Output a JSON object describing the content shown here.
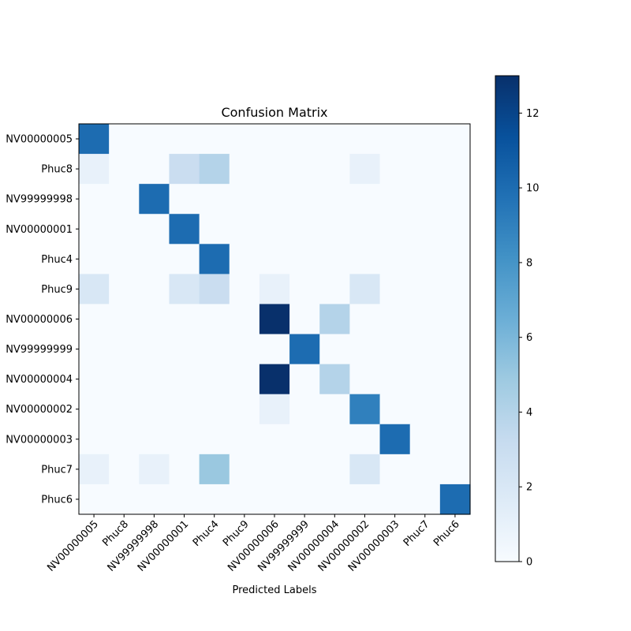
{
  "chart_data": {
    "type": "heatmap",
    "title": "Confusion Matrix",
    "xlabel": "Predicted Labels",
    "ylabel": "",
    "colormap": "Blues",
    "colorbar": {
      "min": 0,
      "max": 13,
      "ticks": [
        0,
        2,
        4,
        6,
        8,
        10,
        12
      ]
    },
    "labels": [
      "NV00000005",
      "Phuc8",
      "NV99999998",
      "NV00000001",
      "Phuc4",
      "Phuc9",
      "NV00000006",
      "NV99999999",
      "NV00000004",
      "NV00000002",
      "NV00000003",
      "Phuc7",
      "Phuc6"
    ],
    "matrix": [
      [
        10,
        0,
        0,
        0,
        0,
        0,
        0,
        0,
        0,
        0,
        0,
        0,
        0
      ],
      [
        1,
        0,
        0,
        3,
        4,
        0,
        0,
        0,
        0,
        1,
        0,
        0,
        0
      ],
      [
        0,
        0,
        10,
        0,
        0,
        0,
        0,
        0,
        0,
        0,
        0,
        0,
        0
      ],
      [
        0,
        0,
        0,
        10,
        0,
        0,
        0,
        0,
        0,
        0,
        0,
        0,
        0
      ],
      [
        0,
        0,
        0,
        0,
        10,
        0,
        0,
        0,
        0,
        0,
        0,
        0,
        0
      ],
      [
        2,
        0,
        0,
        2,
        3,
        0,
        1,
        0,
        0,
        2,
        0,
        0,
        0
      ],
      [
        0,
        0,
        0,
        0,
        0,
        0,
        13,
        0,
        4,
        0,
        0,
        0,
        0
      ],
      [
        0,
        0,
        0,
        0,
        0,
        0,
        0,
        10,
        0,
        0,
        0,
        0,
        0
      ],
      [
        0,
        0,
        0,
        0,
        0,
        0,
        13,
        0,
        4,
        0,
        0,
        0,
        0
      ],
      [
        0,
        0,
        0,
        0,
        0,
        0,
        1,
        0,
        0,
        9,
        0,
        0,
        0
      ],
      [
        0,
        0,
        0,
        0,
        0,
        0,
        0,
        0,
        0,
        0,
        10,
        0,
        0
      ],
      [
        1,
        0,
        1,
        0,
        5,
        0,
        0,
        0,
        0,
        2,
        0,
        0,
        0
      ],
      [
        0,
        0,
        0,
        0,
        0,
        0,
        0,
        0,
        0,
        0,
        0,
        0,
        10
      ]
    ]
  }
}
